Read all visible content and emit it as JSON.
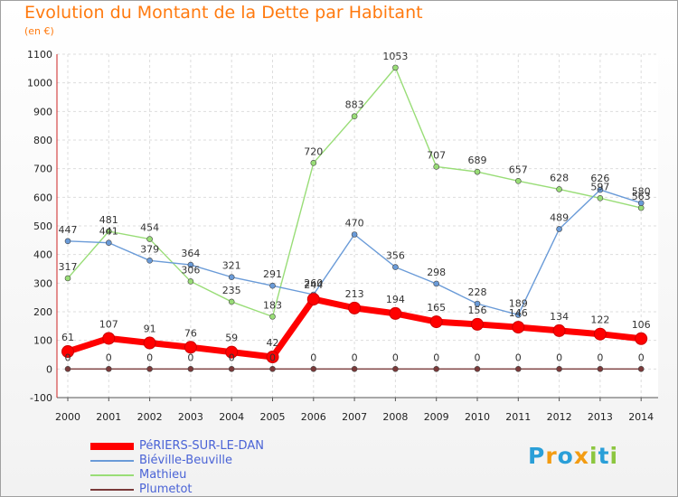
{
  "chart_data": {
    "type": "line",
    "title": "Evolution du Montant de la Dette par Habitant",
    "subtitle": "(en €)",
    "xlabel": "",
    "ylabel": "",
    "ylim": [
      -100,
      1100
    ],
    "y_ticks": [
      -100,
      0,
      100,
      200,
      300,
      400,
      500,
      600,
      700,
      800,
      900,
      1000,
      1100
    ],
    "x": [
      "2000",
      "2001",
      "2002",
      "2003",
      "2004",
      "2005",
      "2006",
      "2007",
      "2008",
      "2009",
      "2010",
      "2011",
      "2012",
      "2013",
      "2014"
    ],
    "grid": true,
    "legend_position": "bottom-left",
    "series": [
      {
        "name": "PéRIERS-SUR-LE-DAN",
        "color": "#ff0000",
        "values": [
          61,
          107,
          91,
          76,
          59,
          42,
          244,
          213,
          194,
          165,
          156,
          146,
          134,
          122,
          106
        ]
      },
      {
        "name": "Biéville-Beuville",
        "color": "#6a9bd8",
        "values": [
          447,
          441,
          379,
          364,
          321,
          291,
          260,
          470,
          356,
          298,
          228,
          189,
          489,
          626,
          580
        ]
      },
      {
        "name": "Mathieu",
        "color": "#99dd77",
        "values": [
          317,
          481,
          454,
          306,
          235,
          183,
          720,
          883,
          1053,
          707,
          689,
          657,
          628,
          597,
          563
        ]
      },
      {
        "name": "Plumetot",
        "color": "#7a3a3a",
        "values": [
          0,
          0,
          0,
          0,
          0,
          0,
          0,
          0,
          0,
          0,
          0,
          0,
          0,
          0,
          0
        ]
      }
    ]
  },
  "logo": {
    "letters": [
      {
        "char": "P",
        "color": "#2a9fd8"
      },
      {
        "char": "r",
        "color": "#f39c12"
      },
      {
        "char": "o",
        "color": "#2a9fd8"
      },
      {
        "char": "x",
        "color": "#f39c12"
      },
      {
        "char": "i",
        "color": "#8cc63f"
      },
      {
        "char": "t",
        "color": "#2a9fd8"
      },
      {
        "char": "i",
        "color": "#8cc63f"
      }
    ]
  }
}
